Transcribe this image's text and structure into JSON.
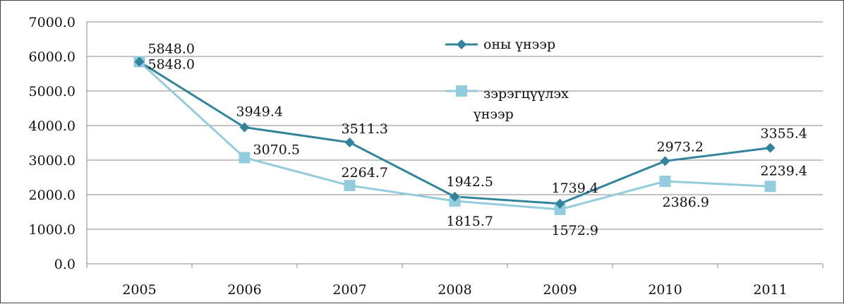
{
  "chart_data": {
    "type": "line",
    "categories": [
      "2005",
      "2006",
      "2007",
      "2008",
      "2009",
      "2010",
      "2011"
    ],
    "ylim": [
      0,
      7000
    ],
    "y_ticks": [
      "0.0",
      "1000.0",
      "2000.0",
      "3000.0",
      "4000.0",
      "5000.0",
      "6000.0",
      "7000.0"
    ],
    "y_tick_values": [
      0,
      1000,
      2000,
      3000,
      4000,
      5000,
      6000,
      7000
    ],
    "grid": true,
    "legend_placement": "top-center",
    "series": [
      {
        "name": "оны үнээр",
        "values": [
          5848.0,
          3949.4,
          3511.3,
          1942.5,
          1739.4,
          2973.2,
          3355.4
        ],
        "labels": [
          "5848.0",
          "3949.4",
          "3511.3",
          "1942.5",
          "1739.4",
          "2973.2",
          "3355.4"
        ],
        "color": "#31849B",
        "marker": "diamond"
      },
      {
        "name_lines": [
          "зэрэгцүүлэх",
          "үнээр"
        ],
        "values": [
          5848.0,
          3070.5,
          2264.7,
          1815.7,
          1572.9,
          2386.9,
          2239.4
        ],
        "labels": [
          "5848.0",
          "3070.5",
          "2264.7",
          "1815.7",
          "1572.9",
          "2386.9",
          "2239.4"
        ],
        "color": "#93CDDD",
        "marker": "square"
      }
    ]
  }
}
